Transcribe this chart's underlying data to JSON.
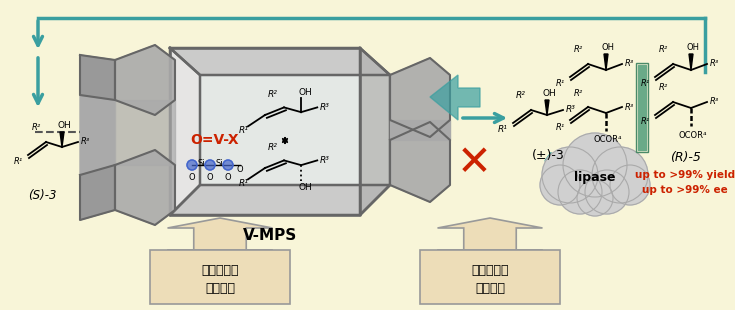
{
  "background_color": "#f8f5d8",
  "box1_text_line1": "細孔内部で",
  "box1_text_line2": "ラセミ化",
  "box2_text_line1": "細孔外部で",
  "box2_text_line2": "光学分割",
  "label_smps": "V-MPS",
  "label_s3": "(S)-3",
  "label_pm3": "(±)-3",
  "label_r5": "(R)-5",
  "label_lipase": "lipase",
  "label_ovx": "O=V-X",
  "label_yield": "up to >99% yield",
  "label_ee": "up to >99% ee",
  "teal_color": "#3a9fa0",
  "red_color": "#cc2200",
  "dark_gray": "#555555",
  "mid_gray": "#888888",
  "light_gray": "#bbbbbb",
  "blue_color": "#4466cc",
  "box_fill": "#edddb8",
  "box_edge": "#999999",
  "green_bar": "#7aab7a"
}
